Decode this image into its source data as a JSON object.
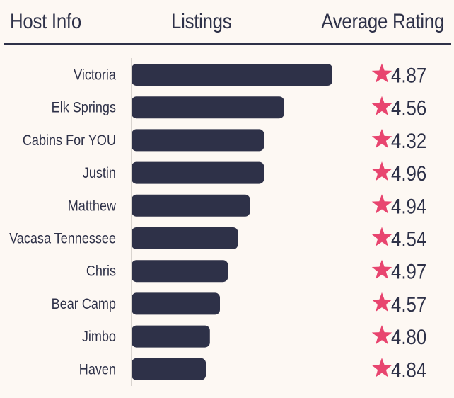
{
  "header": {
    "host_info": "Host Info",
    "listings": "Listings",
    "average_rating": "Average Rating"
  },
  "colors": {
    "background": "#fdf8f3",
    "bar": "#2e3148",
    "star": "#e8456f",
    "text": "#2e3148",
    "axis": "#d9d4cf"
  },
  "chart_data": {
    "type": "bar",
    "orientation": "horizontal",
    "title": "",
    "xlabel": "Listings",
    "ylabel": "Host Info",
    "xlim": [
      0,
      100
    ],
    "categories": [
      "Victoria",
      "Elk Springs",
      "Cabins For YOU",
      "Justin",
      "Matthew",
      "Vacasa Tennessee",
      "Chris",
      "Bear Camp",
      "Jimbo",
      "Haven"
    ],
    "values": [
      100,
      76,
      66,
      66,
      59,
      53,
      48,
      44,
      39,
      37
    ],
    "ratings": [
      "4.87",
      "4.56",
      "4.32",
      "4.96",
      "4.94",
      "4.54",
      "4.97",
      "4.57",
      "4.80",
      "4.84"
    ],
    "rating_icon": "star-icon"
  }
}
